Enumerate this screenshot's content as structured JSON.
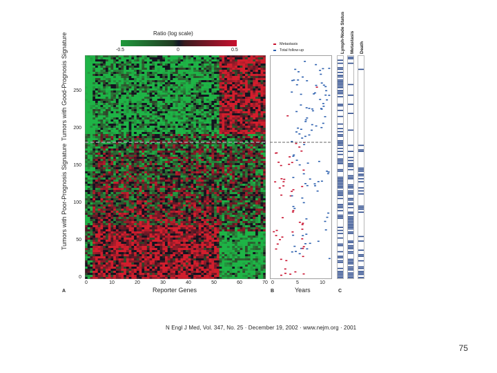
{
  "figure": {
    "color_scale": {
      "title": "Ratio (log scale)",
      "ticks": [
        "-0.5",
        "0",
        "0.5"
      ],
      "colors": [
        "#1f9a3c",
        "#1a1a2e",
        "#c8102e"
      ]
    },
    "heatmap": {
      "y_axis_upper_label": "Tumors with Good-Prognosis Signature",
      "y_axis_lower_label": "Tumors with Poor-Prognosis Signature",
      "y_ticks": [
        "0",
        "50",
        "100",
        "150",
        "200",
        "250"
      ],
      "x_ticks": [
        "0",
        "10",
        "20",
        "30",
        "40",
        "50",
        "60",
        "70"
      ],
      "x_axis_label": "Reporter Genes",
      "panel_letter": "A"
    },
    "scatter": {
      "legend": [
        {
          "label": "Metastasis",
          "color": "#c8102e"
        },
        {
          "label": "Total follow-up",
          "color": "#2b5fae"
        }
      ],
      "x_ticks": [
        "0",
        "5",
        "10"
      ],
      "x_axis_label": "Years",
      "panel_letter": "B"
    },
    "status_columns": {
      "headers": [
        "Lymph-Node Status",
        "Metastasis",
        "Death"
      ],
      "panel_letter": "C",
      "fill_color": "#2b4a8c"
    },
    "citation": "N Engl J Med, Vol. 347, No. 25 · December 19, 2002 · www.nejm.org · 2001"
  },
  "page_number": "75"
}
